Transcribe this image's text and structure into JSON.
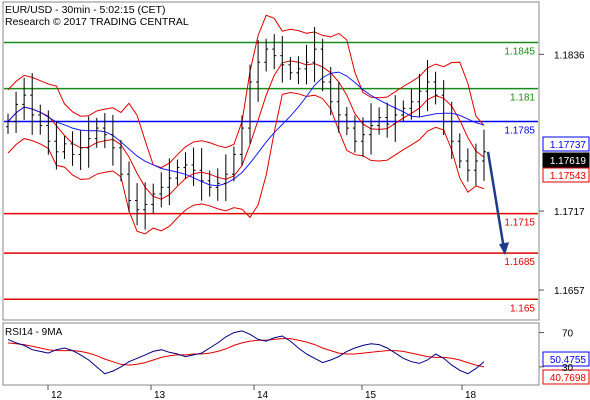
{
  "header": {
    "line1": "EUR/USD - 30min - 5:02:15 (CET)",
    "line2": "Research © 2017 TRADING CENTRAL"
  },
  "colors": {
    "resistance": "#1a8a1a",
    "pivot": "#0000ff",
    "support": "#e00000",
    "candles": "#000000",
    "bollinger": "#e00000",
    "moving_average": "#1a1aff",
    "arrow": "#1f3a8a",
    "rsi": "#000080",
    "rsi_ma": "#e00000"
  },
  "chart_data": [
    {
      "type": "candlestick",
      "instrument": "EUR/USD",
      "timeframe": "30min",
      "ylim": [
        1.1635,
        1.1875
      ],
      "y_ticks": [
        1.1836,
        1.1717,
        1.1657
      ],
      "x_ticks": [
        "12",
        "13",
        "14",
        "15",
        "18"
      ],
      "levels": [
        {
          "label": "1.1845",
          "value": 1.1845,
          "kind": "resistance"
        },
        {
          "label": "1.181",
          "value": 1.181,
          "kind": "resistance"
        },
        {
          "label": "1.1785",
          "value": 1.1785,
          "kind": "pivot"
        },
        {
          "label": "1.1715",
          "value": 1.1715,
          "kind": "support"
        },
        {
          "label": "1.1685",
          "value": 1.1685,
          "kind": "support"
        },
        {
          "label": "1.165",
          "value": 1.165,
          "kind": "support"
        }
      ],
      "price_tags": [
        {
          "label": "1.17737",
          "value": 1.17737,
          "style": "blue"
        },
        {
          "label": "1.17619",
          "value": 1.17619,
          "style": "black"
        },
        {
          "label": "1.17543",
          "value": 1.17543,
          "style": "red"
        }
      ],
      "close_path": [
        1.1785,
        1.1798,
        1.1805,
        1.179,
        1.1782,
        1.177,
        1.1762,
        1.1768,
        1.176,
        1.1765,
        1.1772,
        1.178,
        1.1775,
        1.1765,
        1.1745,
        1.1725,
        1.1718,
        1.1722,
        1.173,
        1.1735,
        1.1742,
        1.175,
        1.1752,
        1.1748,
        1.174,
        1.1735,
        1.1738,
        1.1745,
        1.176,
        1.178,
        1.1815,
        1.183,
        1.184,
        1.1835,
        1.1828,
        1.1822,
        1.1825,
        1.183,
        1.184,
        1.1815,
        1.18,
        1.179,
        1.178,
        1.177,
        1.1775,
        1.1782,
        1.1788,
        1.1783,
        1.179,
        1.1795,
        1.18,
        1.1808,
        1.1815,
        1.1805,
        1.1785,
        1.177,
        1.1755,
        1.1748,
        1.1755,
        1.1762
      ],
      "forecast": {
        "from": 1.1762,
        "to": 1.1685
      }
    },
    {
      "type": "line",
      "title": "RSI14 - 9MA",
      "ylim": [
        10,
        80
      ],
      "y_ticks": [
        70,
        30
      ],
      "series": [
        {
          "values": [
            62,
            58,
            55,
            50,
            48,
            46,
            50,
            52,
            49,
            44,
            38,
            30,
            22,
            25,
            30,
            36,
            40,
            44,
            48,
            50,
            47,
            45,
            42,
            44,
            46,
            52,
            58,
            65,
            70,
            72,
            68,
            62,
            60,
            64,
            66,
            60,
            52,
            45,
            40,
            35,
            38,
            42,
            48,
            52,
            55,
            57,
            56,
            52,
            46,
            40,
            36,
            34,
            38,
            45,
            40,
            32,
            26,
            22,
            28,
            36
          ]
        },
        {
          "values": [
            58,
            57,
            56,
            54,
            52,
            50,
            49,
            49,
            49,
            48,
            46,
            43,
            39,
            36,
            33,
            32,
            33,
            35,
            38,
            41,
            43,
            44,
            44,
            45,
            45,
            46,
            48,
            51,
            55,
            58,
            60,
            61,
            61,
            62,
            63,
            63,
            61,
            59,
            56,
            52,
            49,
            46,
            45,
            45,
            46,
            47,
            48,
            49,
            49,
            48,
            46,
            44,
            42,
            41,
            41,
            40,
            38,
            35,
            32,
            30
          ]
        }
      ],
      "value_tags": [
        {
          "label": "50.4755",
          "value": 50.4755,
          "style": "blue"
        },
        {
          "label": "40.7698",
          "value": 40.7698,
          "style": "red"
        }
      ]
    }
  ]
}
